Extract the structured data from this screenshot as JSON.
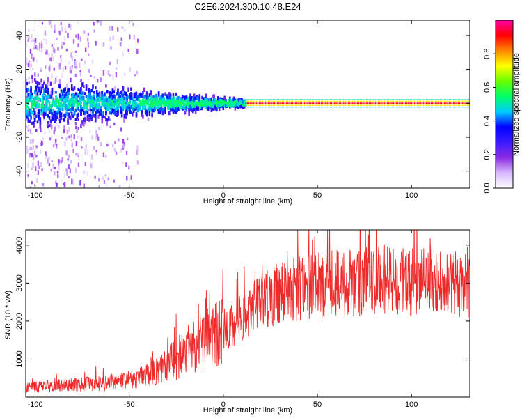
{
  "title": "C2E6.2024.300.10.48.E24",
  "chart_data": [
    {
      "type": "heatmap",
      "xlabel": "Height of straight line (km)",
      "ylabel": "Frequency (Hz)",
      "xlim": [
        -105,
        131
      ],
      "ylim": [
        -50,
        49
      ],
      "xticks": [
        -100,
        -50,
        0,
        50,
        100
      ],
      "yticks": [
        -40,
        -20,
        0,
        20,
        40
      ],
      "xtick_labels": [
        "-100",
        "-50",
        "0",
        "50",
        "100"
      ],
      "ytick_labels": [
        "-40",
        "-20",
        "0",
        "20",
        "40"
      ],
      "colorbar": {
        "label": "Normalized spectral amplitude",
        "range": [
          0,
          1
        ],
        "ticks": [
          0.0,
          0.2,
          0.4,
          0.6,
          0.8
        ],
        "tick_labels": [
          "0.0",
          "0.2",
          "0.4",
          "0.6",
          "0.8"
        ],
        "colormap": [
          "#ffffff",
          "#d8b8ff",
          "#8a2be2",
          "#3b1cff",
          "#0000ff",
          "#00ccff",
          "#00ff66",
          "#66ff00",
          "#ffff00",
          "#ff8800",
          "#ff0000",
          "#ff00aa"
        ]
      },
      "features": {
        "central_line_frequency_hz": 0,
        "strong_line_start_km": 12,
        "broadband_noise_end_km": -45
      }
    },
    {
      "type": "line",
      "xlabel": "Height of straight line (km)",
      "ylabel": "SNR (10 * v/v)",
      "xlim": [
        -105,
        131
      ],
      "ylim": [
        0,
        4400
      ],
      "xticks": [
        -100,
        -50,
        0,
        50,
        100
      ],
      "yticks": [
        1000,
        2000,
        3000,
        4000
      ],
      "xtick_labels": [
        "-100",
        "-50",
        "0",
        "50",
        "100"
      ],
      "ytick_labels": [
        "1000",
        "2000",
        "3000",
        "4000"
      ],
      "series_color": "#ee2a2a",
      "trend": {
        "x": [
          -105,
          -90,
          -70,
          -55,
          -45,
          -35,
          -25,
          -15,
          -5,
          5,
          10,
          20,
          30,
          40,
          60,
          80,
          100,
          120,
          131
        ],
        "y": [
          250,
          300,
          350,
          420,
          500,
          700,
          1000,
          1350,
          1600,
          1900,
          2100,
          2500,
          2750,
          2850,
          3000,
          3050,
          3050,
          3000,
          3000
        ]
      }
    }
  ]
}
